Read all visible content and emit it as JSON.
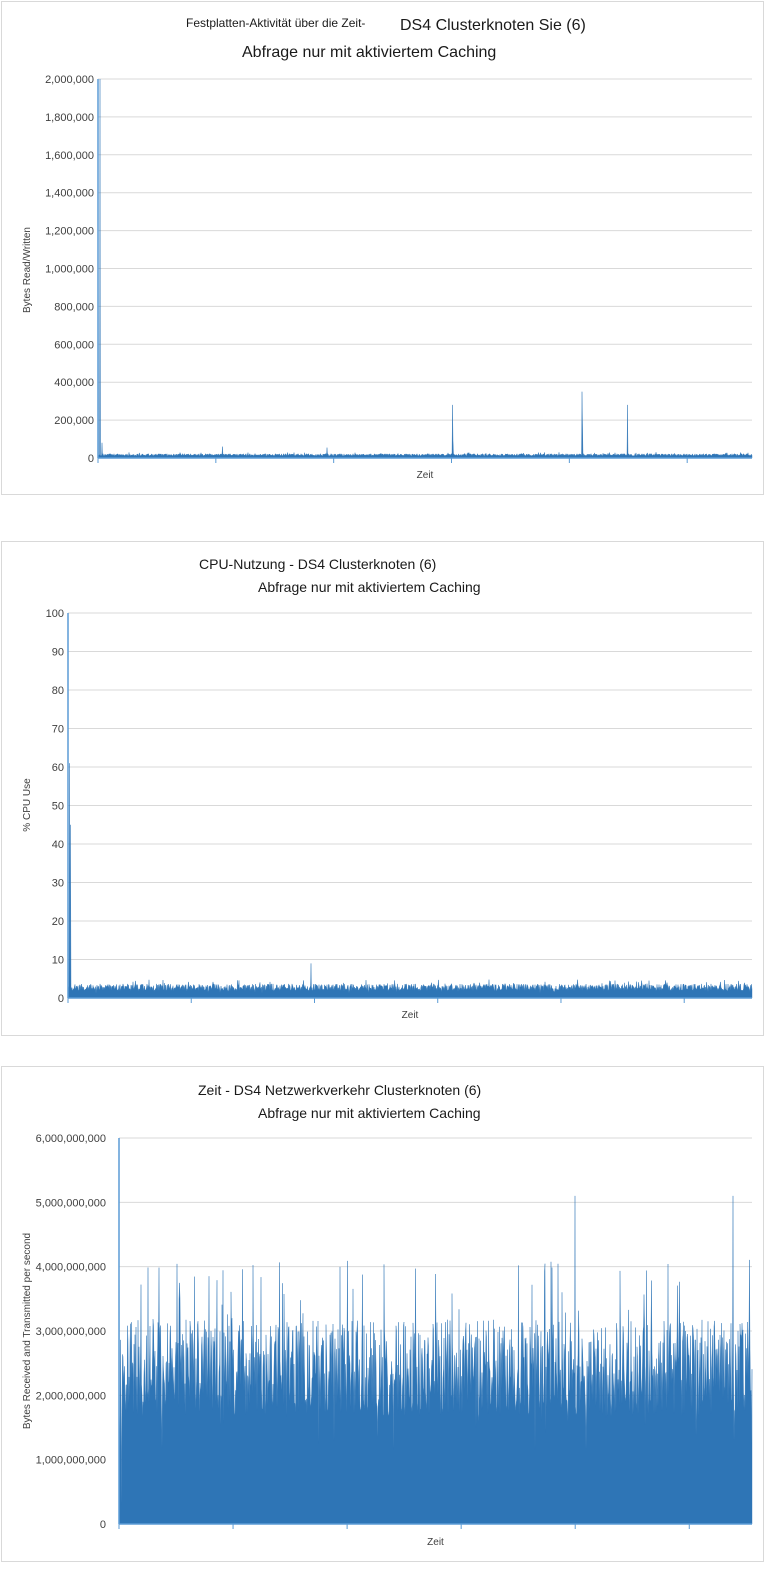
{
  "chart_data": [
    {
      "type": "area",
      "title_parts": [
        "Festplatten-Aktivität über die Zeit-",
        "DS4 Clusterknoten Sie (6)"
      ],
      "subtitle": "Abfrage nur mit aktiviertem Caching",
      "xlabel": "Zeit",
      "ylabel": "Bytes Read/Written",
      "ylim": [
        0,
        2000000
      ],
      "yticks": [
        "0",
        "200,000",
        "400,000",
        "600,000",
        "800,000",
        "1,000,000",
        "1,200,000",
        "1,400,000",
        "1,600,000",
        "1,800,000",
        "2,000,000"
      ],
      "grid": true,
      "legend": "none",
      "color": "#2e75b6",
      "baseline": 15000,
      "noise": 12000,
      "spikes": [
        {
          "x": 0.0,
          "y": 2000000
        },
        {
          "x": 0.003,
          "y": 2000000
        },
        {
          "x": 0.006,
          "y": 80000
        },
        {
          "x": 0.19,
          "y": 60000
        },
        {
          "x": 0.35,
          "y": 55000
        },
        {
          "x": 0.542,
          "y": 280000
        },
        {
          "x": 0.543,
          "y": 90000
        },
        {
          "x": 0.74,
          "y": 350000
        },
        {
          "x": 0.741,
          "y": 180000
        },
        {
          "x": 0.81,
          "y": 280000
        }
      ]
    },
    {
      "type": "area",
      "title": "CPU-Nutzung - DS4 Clusterknoten (6)",
      "subtitle": "Abfrage nur mit aktiviertem Caching",
      "xlabel": "Zeit",
      "ylabel": "% CPU Use",
      "ylim": [
        0,
        100
      ],
      "yticks": [
        "0",
        "10",
        "20",
        "30",
        "40",
        "50",
        "60",
        "70",
        "80",
        "90",
        "100"
      ],
      "grid": true,
      "legend": "none",
      "color": "#2e75b6",
      "baseline": 2.5,
      "noise": 1.8,
      "spikes": [
        {
          "x": 0.0,
          "y": 50
        },
        {
          "x": 0.002,
          "y": 61
        },
        {
          "x": 0.004,
          "y": 45
        },
        {
          "x": 0.355,
          "y": 9
        }
      ]
    },
    {
      "type": "area",
      "title": "Zeit - DS4 Netzwerkverkehr Clusterknoten (6)",
      "subtitle": "Abfrage nur mit aktiviertem Caching",
      "xlabel": "Zeit",
      "ylabel": "Bytes Received and Transmitted per second",
      "ylim": [
        0,
        6000000000
      ],
      "yticks": [
        "0",
        "1,000,000,000",
        "2,000,000,000",
        "3,000,000,000",
        "4,000,000,000",
        "5,000,000,000",
        "6,000,000,000"
      ],
      "grid": true,
      "legend": "none",
      "color": "#2e75b6",
      "baseline": 2200000000,
      "noise": 1500000000,
      "spikes": [
        {
          "x": 0.0,
          "y": 6000000000
        },
        {
          "x": 0.004,
          "y": 300000000
        },
        {
          "x": 0.72,
          "y": 5100000000
        },
        {
          "x": 0.97,
          "y": 5100000000
        }
      ]
    }
  ]
}
